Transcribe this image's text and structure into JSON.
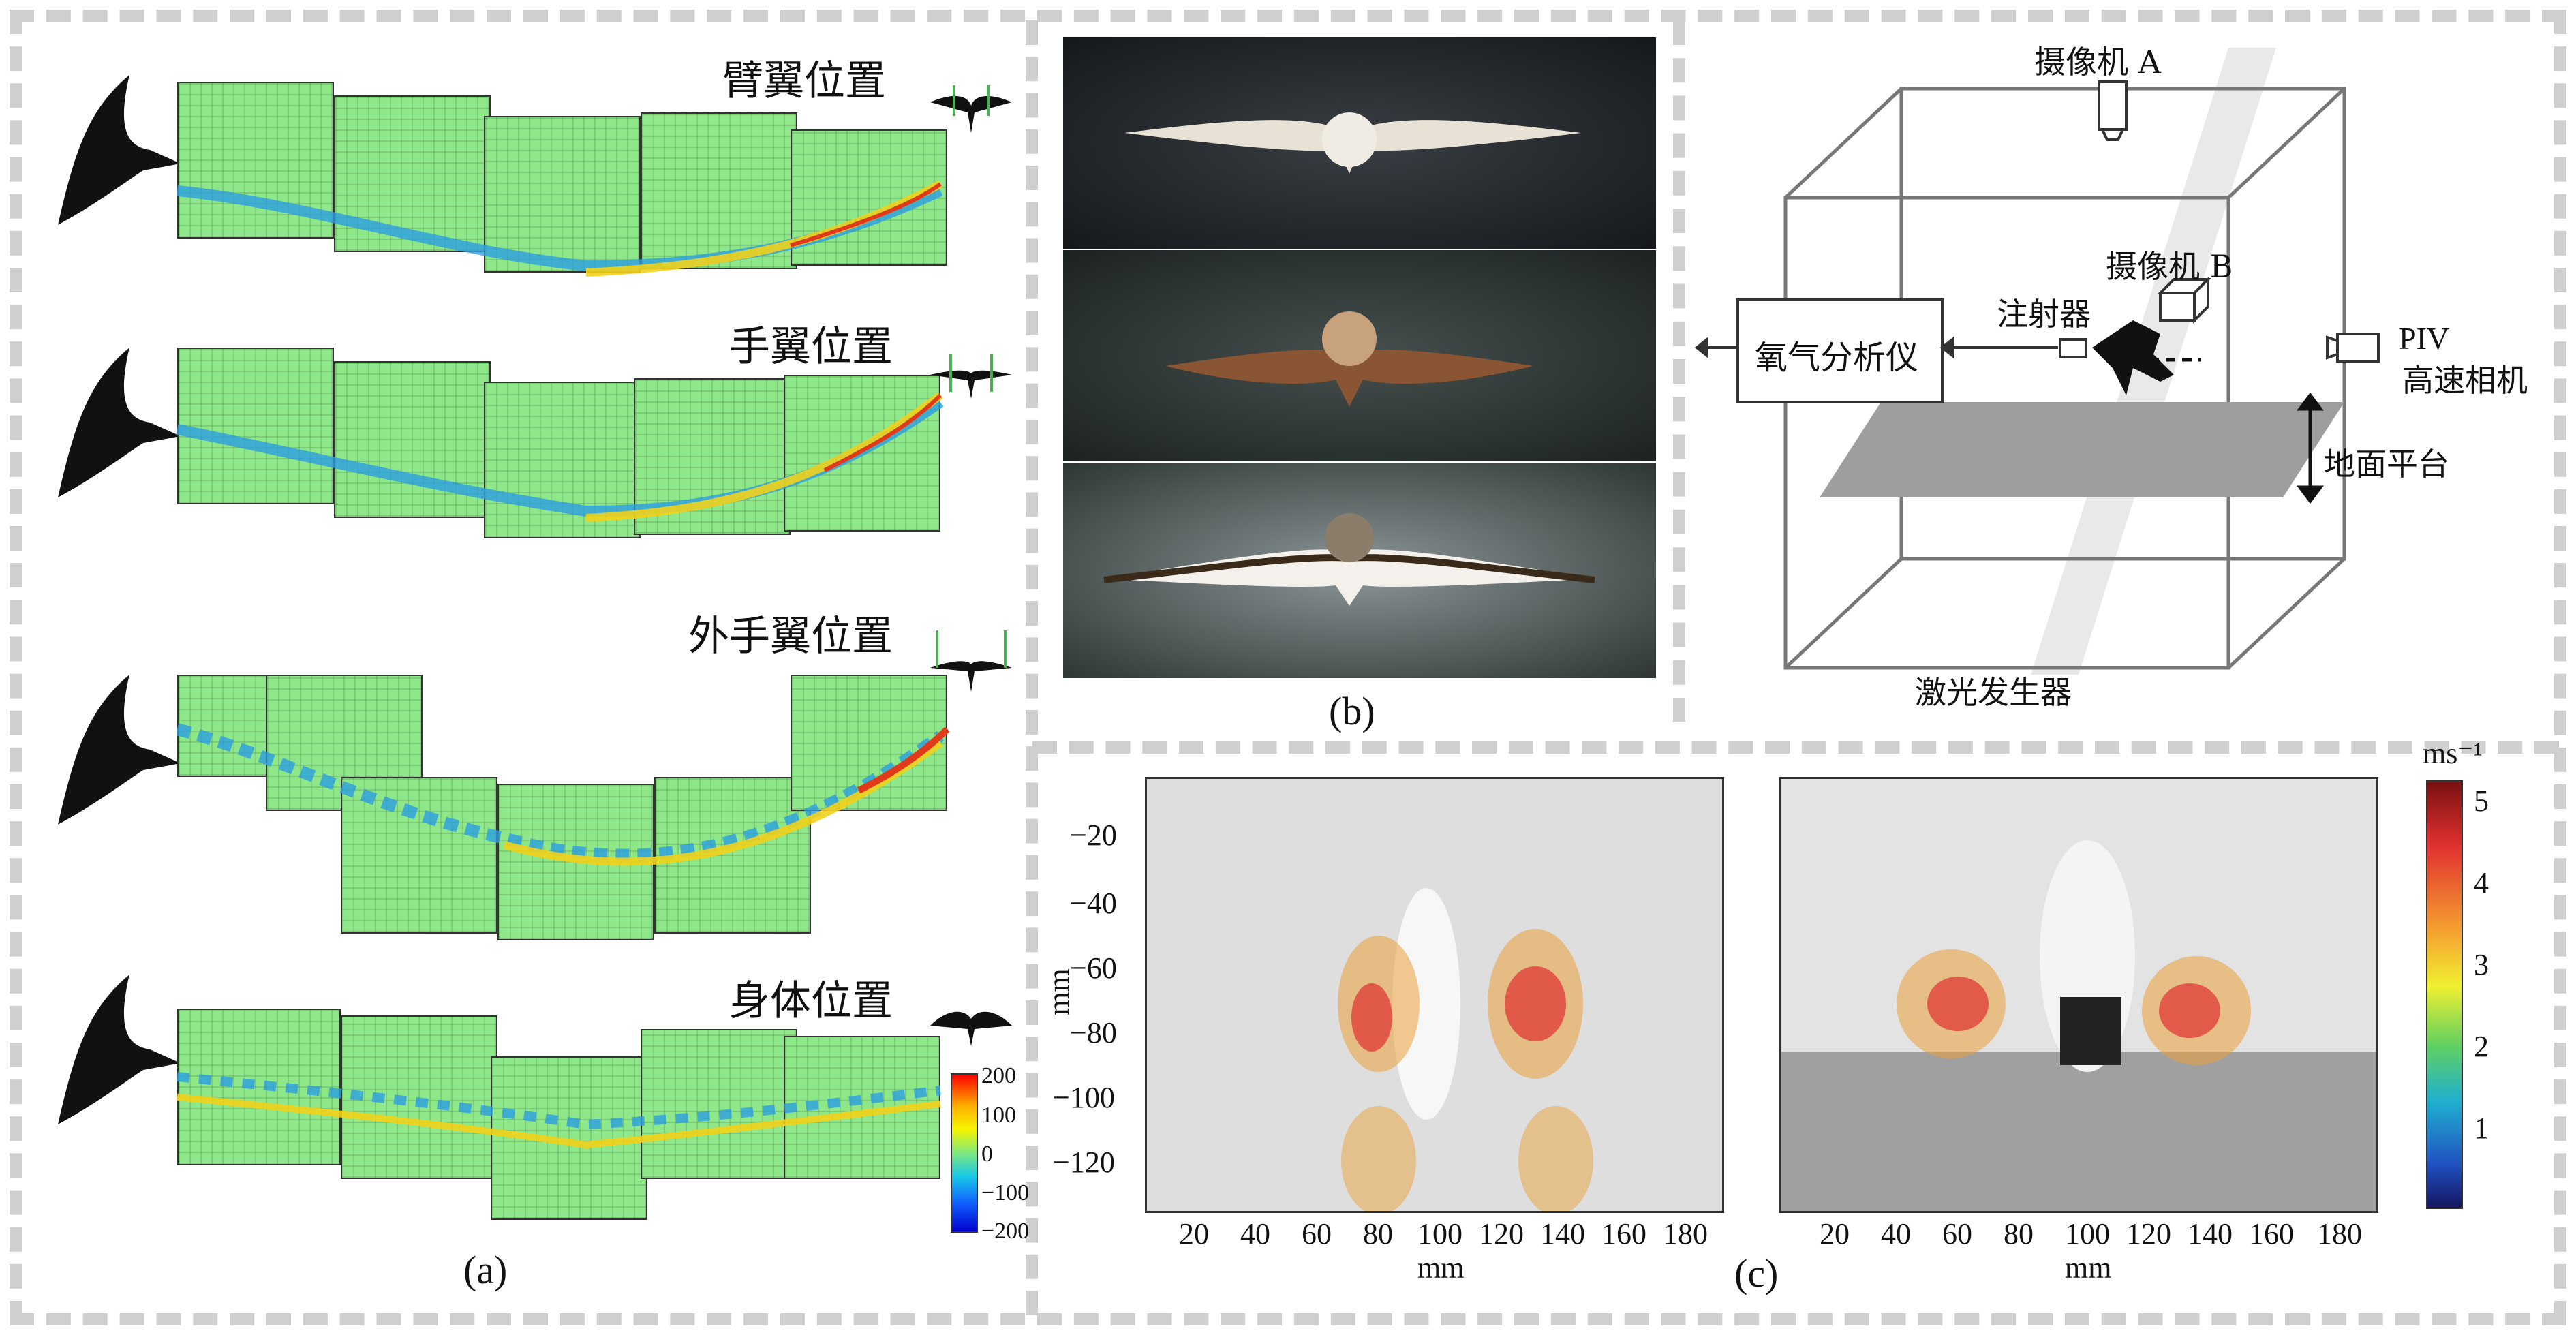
{
  "panel_a": {
    "rows": [
      {
        "label": "臂翼位置"
      },
      {
        "label": "手翼位置"
      },
      {
        "label": "外手翼位置"
      },
      {
        "label": "身体位置"
      }
    ],
    "colorbar": {
      "ticks": [
        "200",
        "100",
        "0",
        "−100",
        "−200"
      ]
    },
    "caption": "(a)"
  },
  "panel_b": {
    "caption": "(b)",
    "setup": {
      "camera_a": "摄像机 A",
      "camera_b": "摄像机 B",
      "injector": "注射器",
      "oxygen_analyzer": "氧气分析仪",
      "piv_line1": "PIV",
      "piv_line2": "高速相机",
      "ground_platform": "地面平台",
      "laser": "激光发生器"
    }
  },
  "panel_c": {
    "caption": "(c)",
    "left_plot": {
      "ylabel": "mm",
      "xlabel": "mm",
      "yticks": [
        "−20",
        "−40",
        "−60",
        "−80",
        "−100",
        "−120"
      ],
      "xticks": [
        "20",
        "40",
        "60",
        "80",
        "100",
        "120",
        "140",
        "160",
        "180"
      ]
    },
    "right_plot": {
      "xlabel": "mm",
      "xticks": [
        "20",
        "40",
        "60",
        "80",
        "100",
        "120",
        "140",
        "160",
        "180"
      ]
    },
    "colorbar": {
      "unit": "ms⁻¹",
      "ticks": [
        "5",
        "4",
        "3",
        "2",
        "1"
      ]
    }
  },
  "colors": {
    "frame_dash": "#cfcfcf",
    "field_green": "#8ee88a",
    "platform_gray": "#9e9e9e"
  }
}
